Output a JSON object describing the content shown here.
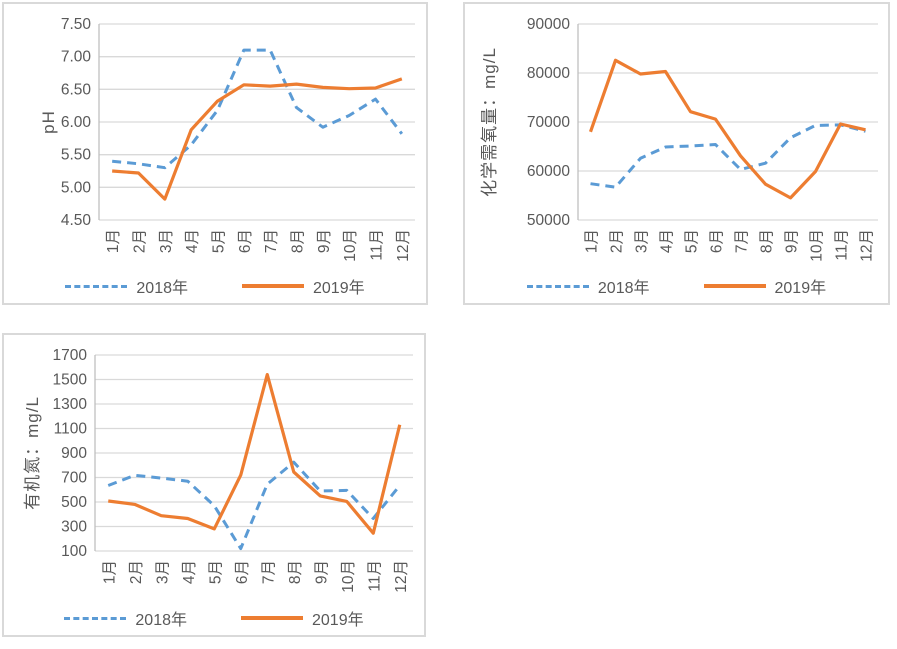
{
  "colors": {
    "series_2018": "#5B9BD5",
    "series_2019": "#ED7D31",
    "gridline": "#D9D9D9",
    "axis_line": "#BFBFBF",
    "text": "#595959",
    "panel_border": "#D9D9D9",
    "background": "#FFFFFF"
  },
  "chart_data": [
    {
      "type": "line",
      "y_axis_title": "pH",
      "ylim": [
        4.5,
        7.5
      ],
      "y_ticks": [
        "7.50",
        "7.00",
        "6.50",
        "6.00",
        "5.50",
        "5.00",
        "4.50"
      ],
      "categories": [
        "1月",
        "2月",
        "3月",
        "4月",
        "5月",
        "6月",
        "7月",
        "8月",
        "9月",
        "10月",
        "11月",
        "12月"
      ],
      "grid": true,
      "legend_position": "bottom",
      "series": [
        {
          "name": "2018年",
          "style": "dashed",
          "color_key": "series_2018",
          "values": [
            5.4,
            5.36,
            5.3,
            5.65,
            6.18,
            7.1,
            7.1,
            6.22,
            5.92,
            6.1,
            6.35,
            5.82
          ]
        },
        {
          "name": "2019年",
          "style": "solid",
          "color_key": "series_2019",
          "values": [
            5.25,
            5.22,
            4.82,
            5.88,
            6.32,
            6.57,
            6.55,
            6.58,
            6.53,
            6.51,
            6.52,
            6.66
          ]
        }
      ]
    },
    {
      "type": "line",
      "y_axis_title": "化学需氧量：mg/L",
      "ylim": [
        50000,
        90000
      ],
      "y_ticks": [
        "90000",
        "80000",
        "70000",
        "60000",
        "50000"
      ],
      "categories": [
        "1月",
        "2月",
        "3月",
        "4月",
        "5月",
        "6月",
        "7月",
        "8月",
        "9月",
        "10月",
        "11月",
        "12月"
      ],
      "grid": true,
      "legend_position": "bottom",
      "series": [
        {
          "name": "2018年",
          "style": "dashed",
          "color_key": "series_2018",
          "values": [
            57400,
            56700,
            62600,
            64900,
            65100,
            65400,
            60300,
            61600,
            66800,
            69300,
            69400,
            68100
          ]
        },
        {
          "name": "2019年",
          "style": "solid",
          "color_key": "series_2019",
          "values": [
            68000,
            82600,
            79800,
            80300,
            72100,
            70600,
            63100,
            57300,
            54500,
            59900,
            69600,
            68400
          ]
        }
      ]
    },
    {
      "type": "line",
      "y_axis_title": "有机氮：mg/L",
      "ylim": [
        100,
        1700
      ],
      "y_ticks": [
        "1700",
        "1500",
        "1300",
        "1100",
        "900",
        "700",
        "500",
        "300",
        "100"
      ],
      "categories": [
        "1月",
        "2月",
        "3月",
        "4月",
        "5月",
        "6月",
        "7月",
        "8月",
        "9月",
        "10月",
        "11月",
        "12月"
      ],
      "grid": true,
      "legend_position": "bottom",
      "series": [
        {
          "name": "2018年",
          "style": "dashed",
          "color_key": "series_2018",
          "values": [
            635,
            718,
            695,
            670,
            470,
            120,
            645,
            825,
            590,
            595,
            365,
            635
          ]
        },
        {
          "name": "2019年",
          "style": "solid",
          "color_key": "series_2019",
          "values": [
            508,
            480,
            388,
            365,
            280,
            720,
            1540,
            745,
            550,
            505,
            245,
            1130
          ]
        }
      ]
    }
  ]
}
